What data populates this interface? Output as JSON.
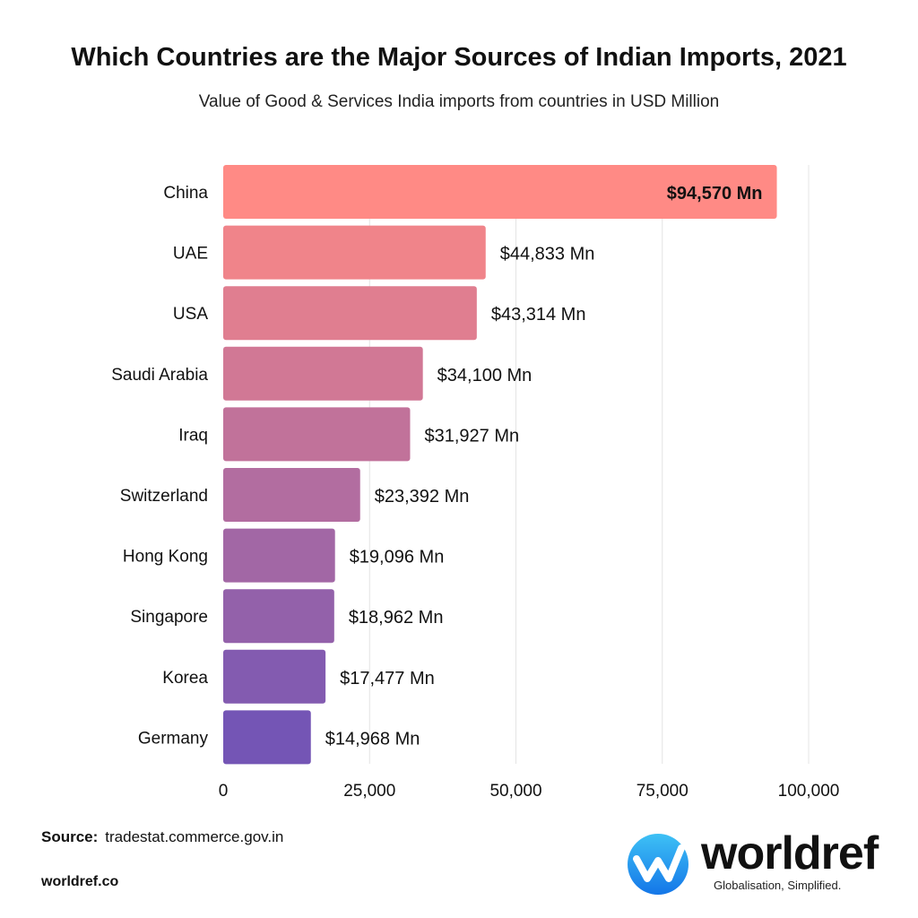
{
  "title": "Which Countries are the Major Sources of Indian Imports, 2021",
  "subtitle": "Value of Good & Services India imports from countries in USD Million",
  "source_label": "Source:",
  "source_value": "tradestat.commerce.gov.in",
  "website": "worldref.co",
  "logo": {
    "word": "worldref",
    "tagline": "Globalisation, Simplified.",
    "icon": "worldref-w-logo-icon",
    "color": "#1E9BF0"
  },
  "chart_data": {
    "type": "bar",
    "orientation": "horizontal",
    "title": "Which Countries are the Major Sources of Indian Imports, 2021",
    "subtitle": "Value of Good & Services India imports from countries in USD Million",
    "categories": [
      "China",
      "UAE",
      "USA",
      "Saudi Arabia",
      "Iraq",
      "Switzerland",
      "Hong Kong",
      "Singapore",
      "Korea",
      "Germany"
    ],
    "values": [
      94570,
      44833,
      43314,
      34100,
      31927,
      23392,
      19096,
      18962,
      17477,
      14968
    ],
    "data_labels": [
      "$94,570 Mn",
      "$44,833 Mn",
      "$43,314 Mn",
      "$34,100 Mn",
      "$31,927 Mn",
      "$23,392 Mn",
      "$19,096 Mn",
      "$18,962 Mn",
      "$17,477 Mn",
      "$14,968 Mn"
    ],
    "xlim": [
      0,
      100000
    ],
    "xticks": [
      0,
      25000,
      50000,
      75000,
      100000
    ],
    "xtick_labels": [
      "0",
      "25,000",
      "50,000",
      "75,000",
      "100,000"
    ],
    "grid": "vertical",
    "colors": {
      "start": "#FF8A85",
      "end": "#7455B5"
    }
  }
}
